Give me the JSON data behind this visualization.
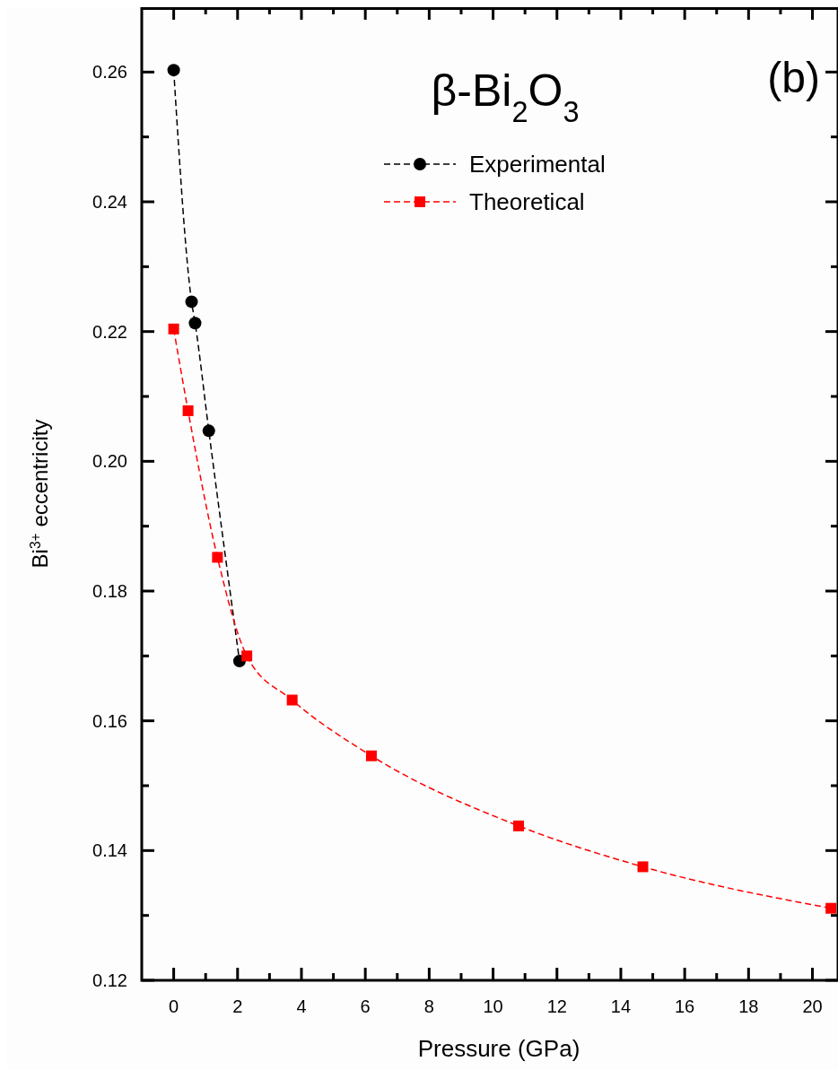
{
  "chart_data": {
    "type": "line",
    "title": "β-Bi$_{2}$O$_{3}$",
    "xlabel": "Pressure (GPa)",
    "ylabel": "Bi$^{3+}$ eccentricity",
    "annotations": [
      "(b)"
    ],
    "xlim": [
      -1,
      20.8
    ],
    "ylim": [
      0.12,
      0.27
    ],
    "xticks": [
      0,
      {
        "value": 1,
        "label": null
      },
      2,
      {
        "value": 3,
        "label": null
      },
      4,
      {
        "value": 5,
        "label": null
      },
      6,
      {
        "value": 7,
        "label": null
      },
      8,
      {
        "value": 9,
        "label": null
      },
      10,
      {
        "value": 11,
        "label": null
      },
      12,
      {
        "value": 13,
        "label": null
      },
      14,
      {
        "value": 15,
        "label": null
      },
      16,
      {
        "value": 17,
        "label": null
      },
      18,
      {
        "value": 19,
        "label": null
      },
      20
    ],
    "yticks": [
      {
        "value": 0.12,
        "label": "0.12"
      },
      {
        "value": 0.13,
        "label": null
      },
      {
        "value": 0.14,
        "label": "0.14"
      },
      {
        "value": 0.15,
        "label": null
      },
      {
        "value": 0.16,
        "label": "0.16"
      },
      {
        "value": 0.17,
        "label": null
      },
      {
        "value": 0.18,
        "label": "0.18"
      },
      {
        "value": 0.19,
        "label": null
      },
      {
        "value": 0.2,
        "label": "0.20"
      },
      {
        "value": 0.21,
        "label": null
      },
      {
        "value": 0.22,
        "label": "0.22"
      },
      {
        "value": 0.23,
        "label": null
      },
      {
        "value": 0.24,
        "label": "0.24"
      },
      {
        "value": 0.25,
        "label": null
      },
      {
        "value": 0.26,
        "label": "0.26"
      }
    ],
    "grid": false,
    "legend": "top",
    "line_style": "dashed",
    "series": [
      {
        "name": "Experimental",
        "color": "#000000",
        "marker": "circle",
        "x": [
          0,
          0.56,
          0.67,
          1.1,
          2.06
        ],
        "values": [
          0.2603,
          0.2246,
          0.2213,
          0.2047,
          0.1692
        ]
      },
      {
        "name": "Theoretical",
        "color": "#ff0000",
        "marker": "square",
        "x": [
          0,
          0.45,
          1.37,
          2.29,
          3.71,
          6.19,
          10.8,
          14.69,
          20.58
        ],
        "values": [
          0.2204,
          0.2078,
          0.1852,
          0.17,
          0.1632,
          0.1546,
          0.1438,
          0.1375,
          0.1311
        ]
      }
    ]
  }
}
